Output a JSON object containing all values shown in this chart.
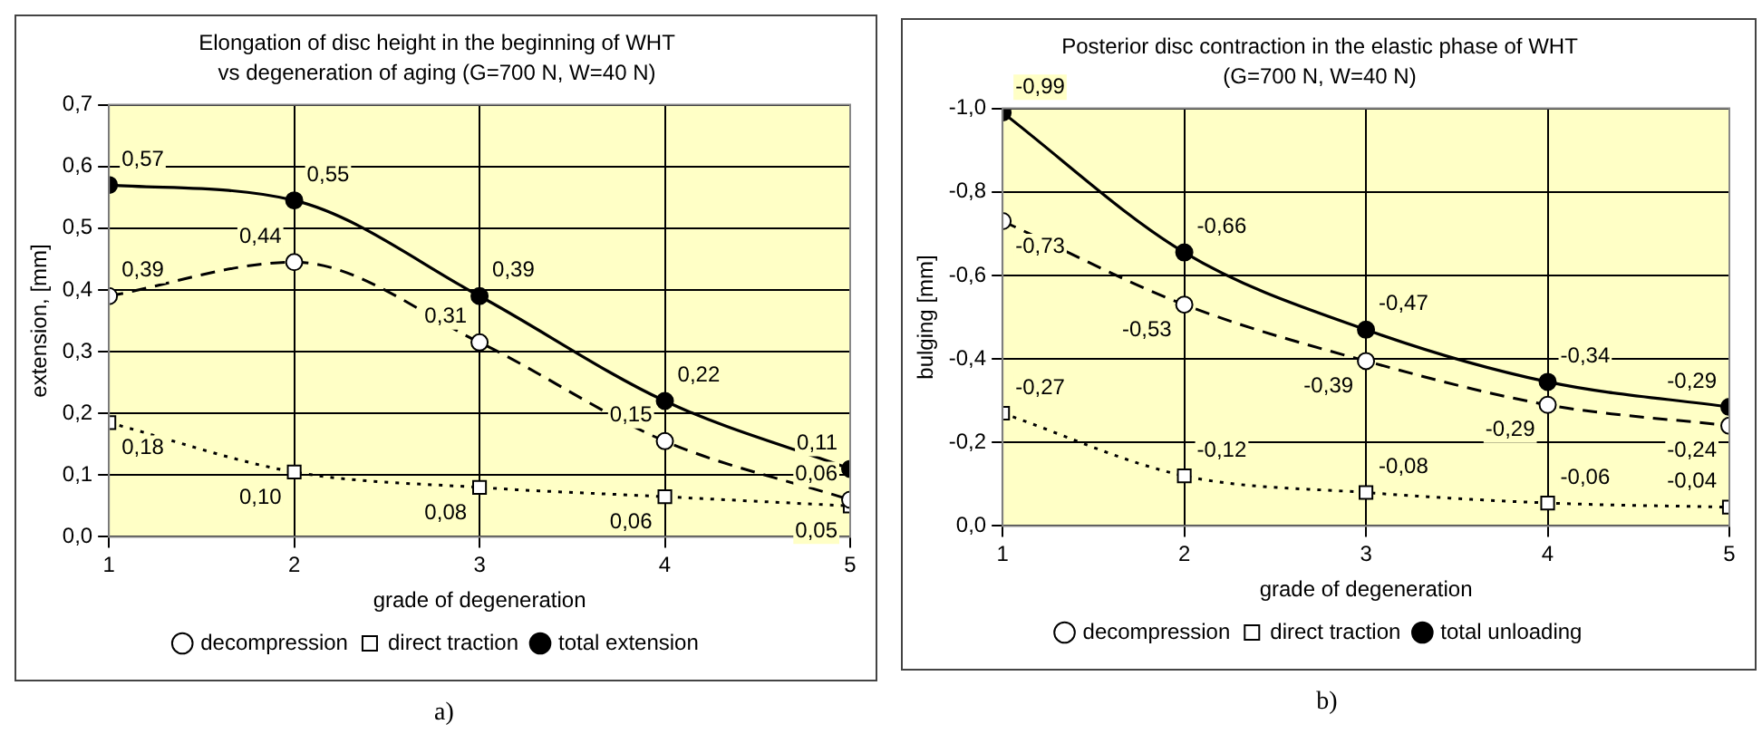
{
  "chart_data": [
    {
      "type": "line",
      "title": "Elongation of disc height in the beginning of WHT",
      "subtitle": "vs degeneration of aging (G=700 N, W=40 N)",
      "xlabel": "grade of degeneration",
      "ylabel": "extension, [mm]",
      "annotations": [
        "a)"
      ],
      "x": [
        1,
        2,
        3,
        4,
        5
      ],
      "xlim": [
        1,
        5
      ],
      "xticks": [
        1,
        2,
        3,
        4,
        5
      ],
      "ylim": [
        0,
        0.7
      ],
      "yticks": [
        {
          "value": 0,
          "label": "0,0"
        },
        {
          "value": 0.1,
          "label": "0,1"
        },
        {
          "value": 0.2,
          "label": "0,2"
        },
        {
          "value": 0.3,
          "label": "0,3"
        },
        {
          "value": 0.4,
          "label": "0,4"
        },
        {
          "value": 0.5,
          "label": "0,5"
        },
        {
          "value": 0.6,
          "label": "0,6"
        },
        {
          "value": 0.7,
          "label": "0,7"
        }
      ],
      "grid": true,
      "legend": "bottom",
      "series": [
        {
          "name": "decompression",
          "color": "#000000",
          "marker": "circle",
          "line_style": "dashed",
          "values": [
            0.39,
            0.445,
            0.315,
            0.155,
            0.06
          ],
          "value_labels": [
            "0,39",
            "0,44",
            "0,31",
            "0,15",
            "0,06"
          ]
        },
        {
          "name": "direct traction",
          "color": "#000000",
          "marker": "square",
          "line_style": "dotted",
          "values": [
            0.185,
            0.105,
            0.08,
            0.065,
            0.05
          ],
          "value_labels": [
            "0,18",
            "0,10",
            "0,08",
            "0,06",
            "0,05"
          ]
        },
        {
          "name": "total extension",
          "color": "#000000",
          "marker": "circle",
          "line_style": "solid",
          "values": [
            0.57,
            0.545,
            0.39,
            0.22,
            0.11
          ],
          "value_labels": [
            "0,57",
            "0,55",
            "0,39",
            "0,22",
            "0,11"
          ]
        }
      ]
    },
    {
      "type": "line",
      "title": "Posterior disc contraction in the elastic phase of WHT",
      "subtitle": "(G=700 N, W=40 N)",
      "xlabel": "grade of degeneration",
      "ylabel": "bulging [mm]",
      "annotations": [
        "b)"
      ],
      "x": [
        1,
        2,
        3,
        4,
        5
      ],
      "xlim": [
        1,
        5
      ],
      "xticks": [
        1,
        2,
        3,
        4,
        5
      ],
      "ylim": [
        0,
        -1.0
      ],
      "yticks": [
        {
          "value": 0,
          "label": "0,0"
        },
        {
          "value": -0.2,
          "label": "-0,2"
        },
        {
          "value": -0.4,
          "label": "-0,4"
        },
        {
          "value": -0.6,
          "label": "-0,6"
        },
        {
          "value": -0.8,
          "label": "-0,8"
        },
        {
          "value": -1.0,
          "label": "-1,0"
        }
      ],
      "grid": true,
      "legend": "bottom",
      "series": [
        {
          "name": "decompression",
          "color": "#000000",
          "marker": "circle",
          "line_style": "dashed",
          "values": [
            -0.73,
            -0.53,
            -0.395,
            -0.29,
            -0.24
          ],
          "value_labels": [
            "-0,73",
            "-0,53",
            "-0,39",
            "-0,29",
            "-0,24"
          ]
        },
        {
          "name": "direct traction",
          "color": "#000000",
          "marker": "square",
          "line_style": "dotted",
          "values": [
            -0.27,
            -0.12,
            -0.08,
            -0.055,
            -0.045
          ],
          "value_labels": [
            "-0,27",
            "-0,12",
            "-0,08",
            "-0,06",
            "-0,04"
          ]
        },
        {
          "name": "total unloading",
          "color": "#000000",
          "marker": "circle",
          "line_style": "solid",
          "values": [
            -0.99,
            -0.655,
            -0.47,
            -0.345,
            -0.285
          ],
          "value_labels": [
            "-0,99",
            "-0,66",
            "-0,47",
            "-0,34",
            "-0,29"
          ]
        }
      ]
    }
  ]
}
